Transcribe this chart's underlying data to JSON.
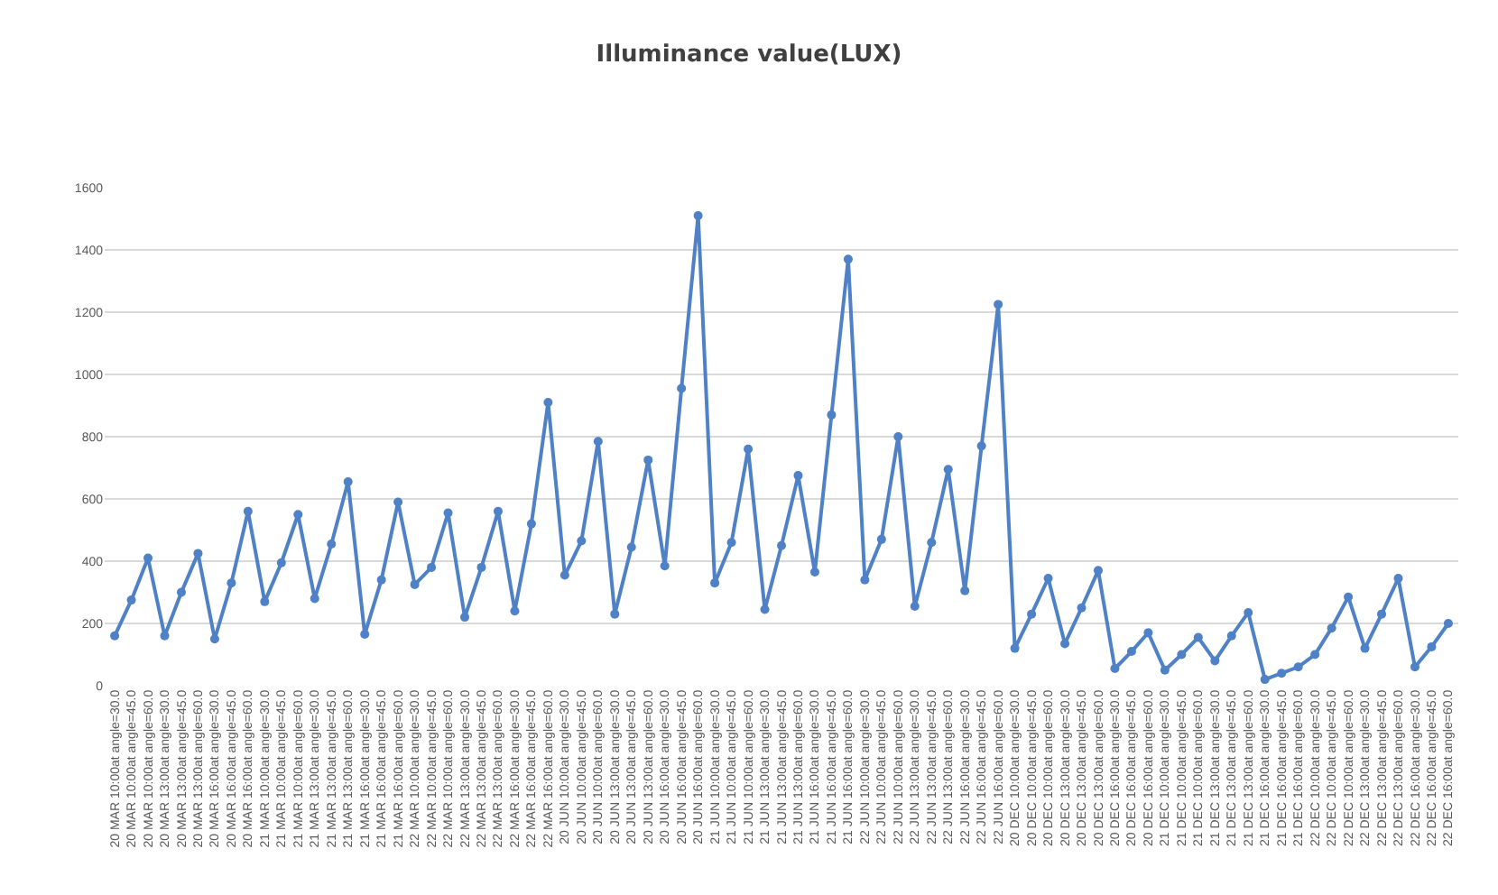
{
  "chart_data": {
    "type": "line",
    "title": "Illuminance value(LUX)",
    "categories": [
      "20 MAR 10:00at angle=30.0",
      "20 MAR 10:00at angle=45.0",
      "20 MAR 10:00at angle=60.0",
      "20 MAR 13:00at angle=30.0",
      "20 MAR 13:00at angle=45.0",
      "20 MAR 13:00at angle=60.0",
      "20 MAR 16:00at angle=30.0",
      "20 MAR 16:00at angle=45.0",
      "20 MAR 16:00at angle=60.0",
      "21 MAR 10:00at angle=30.0",
      "21 MAR 10:00at angle=45.0",
      "21 MAR 10:00at angle=60.0",
      "21 MAR 13:00at angle=30.0",
      "21 MAR 13:00at angle=45.0",
      "21 MAR 13:00at angle=60.0",
      "21 MAR 16:00at angle=30.0",
      "21 MAR 16:00at angle=45.0",
      "21 MAR 16:00at angle=60.0",
      "22 MAR 10:00at angle=30.0",
      "22 MAR 10:00at angle=45.0",
      "22 MAR 10:00at angle=60.0",
      "22 MAR 13:00at angle=30.0",
      "22 MAR 13:00at angle=45.0",
      "22 MAR 13:00at angle=60.0",
      "22 MAR 16:00at angle=30.0",
      "22 MAR 16:00at angle=45.0",
      "22 MAR 16:00at angle=60.0",
      "20 JUN 10:00at angle=30.0",
      "20 JUN 10:00at angle=45.0",
      "20 JUN 10:00at angle=60.0",
      "20 JUN 13:00at angle=30.0",
      "20 JUN 13:00at angle=45.0",
      "20 JUN 13:00at angle=60.0",
      "20 JUN 16:00at angle=30.0",
      "20 JUN 16:00at angle=45.0",
      "20 JUN 16:00at angle=60.0",
      "21 JUN 10:00at angle=30.0",
      "21 JUN 10:00at angle=45.0",
      "21 JUN 10:00at angle=60.0",
      "21 JUN 13:00at angle=30.0",
      "21 JUN 13:00at angle=45.0",
      "21 JUN 13:00at angle=60.0",
      "21 JUN 16:00at angle=30.0",
      "21 JUN 16:00at angle=45.0",
      "21 JUN 16:00at angle=60.0",
      "22 JUN 10:00at angle=30.0",
      "22 JUN 10:00at angle=45.0",
      "22 JUN 10:00at angle=60.0",
      "22 JUN 13:00at angle=30.0",
      "22 JUN 13:00at angle=45.0",
      "22 JUN 13:00at angle=60.0",
      "22 JUN 16:00at angle=30.0",
      "22 JUN 16:00at angle=45.0",
      "22 JUN 16:00at angle=60.0",
      "20 DEC 10:00at angle=30.0",
      "20 DEC 10:00at angle=45.0",
      "20 DEC 10:00at angle=60.0",
      "20 DEC 13:00at angle=30.0",
      "20 DEC 13:00at angle=45.0",
      "20 DEC 13:00at angle=60.0",
      "20 DEC 16:00at angle=30.0",
      "20 DEC 16:00at angle=45.0",
      "20 DEC 16:00at angle=60.0",
      "21 DEC 10:00at angle=30.0",
      "21 DEC 10:00at angle=45.0",
      "21 DEC 10:00at angle=60.0",
      "21 DEC 13:00at angle=30.0",
      "21 DEC 13:00at angle=45.0",
      "21 DEC 13:00at angle=60.0",
      "21 DEC 16:00at angle=30.0",
      "21 DEC 16:00at angle=45.0",
      "21 DEC 16:00at angle=60.0",
      "22 DEC 10:00at angle=30.0",
      "22 DEC 10:00at angle=45.0",
      "22 DEC 10:00at angle=60.0",
      "22 DEC 13:00at angle=30.0",
      "22 DEC 13:00at angle=45.0",
      "22 DEC 13:00at angle=60.0",
      "22 DEC 16:00at angle=30.0",
      "22 DEC 16:00at angle=45.0",
      "22 DEC 16:00at angle=60.0"
    ],
    "series": [
      {
        "color": "#4f81c7",
        "values": [
          160,
          275,
          410,
          160,
          300,
          425,
          150,
          330,
          560,
          270,
          395,
          550,
          280,
          455,
          655,
          165,
          340,
          590,
          325,
          380,
          555,
          220,
          380,
          560,
          240,
          520,
          910,
          355,
          465,
          785,
          230,
          445,
          725,
          385,
          955,
          1510,
          330,
          460,
          760,
          245,
          450,
          675,
          365,
          870,
          1370,
          340,
          470,
          800,
          255,
          460,
          695,
          305,
          770,
          1225,
          120,
          230,
          345,
          135,
          250,
          370,
          55,
          110,
          170,
          50,
          100,
          155,
          80,
          160,
          235,
          20,
          40,
          60,
          100,
          185,
          285,
          120,
          230,
          345,
          60,
          125,
          200
        ]
      }
    ],
    "ylim": [
      0,
      1600
    ],
    "yticks": [
      0,
      200,
      400,
      600,
      800,
      1000,
      1200,
      1400,
      1600
    ],
    "grid": "y",
    "legend": false,
    "marker": "circle",
    "line_style": "solid"
  }
}
